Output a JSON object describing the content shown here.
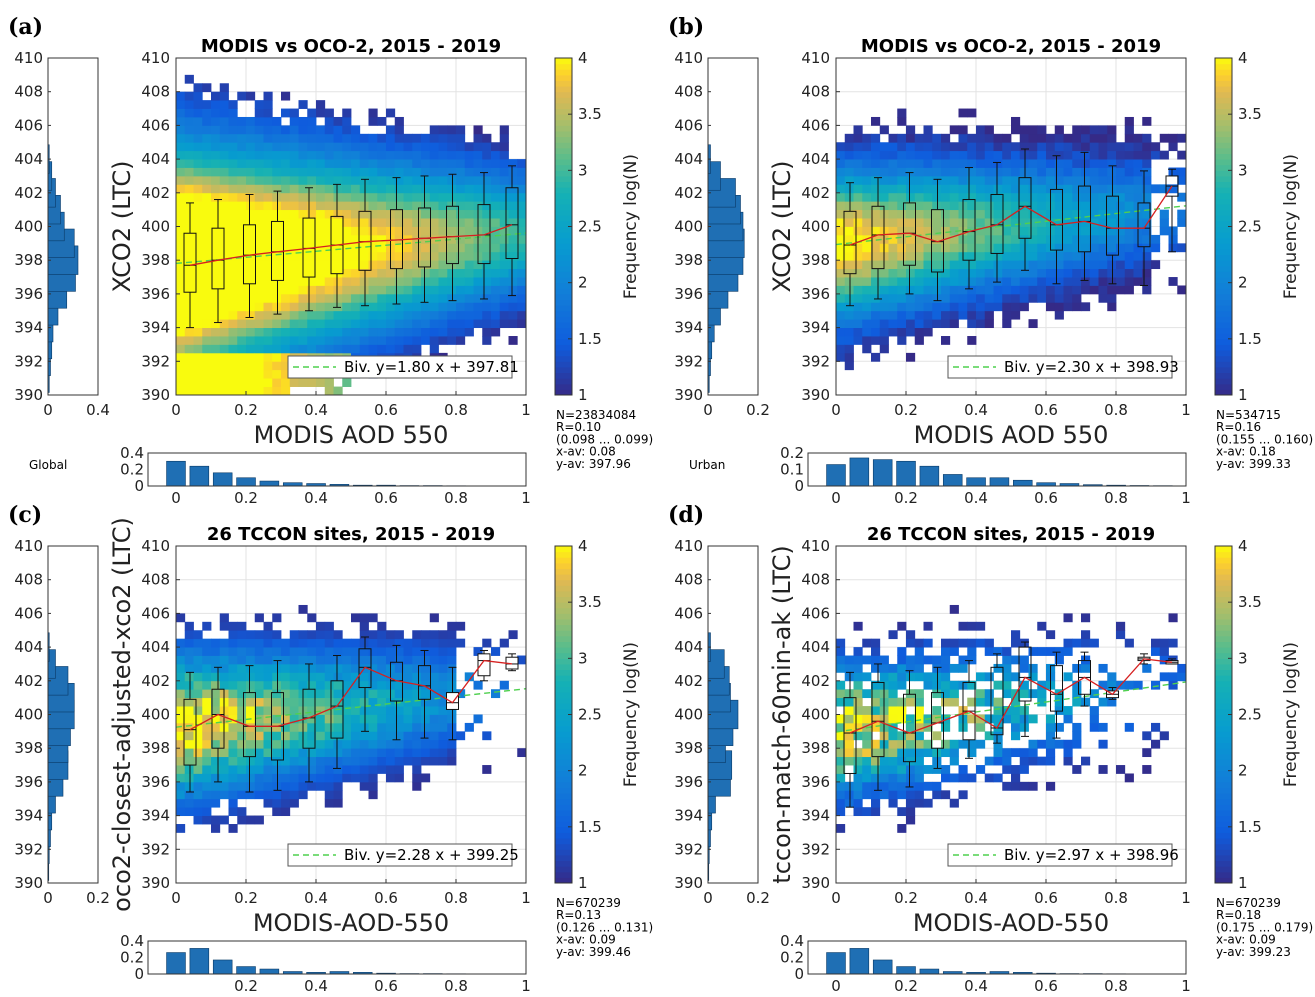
{
  "chart_data": [
    {
      "panel": "(a)",
      "type": "heatmap",
      "title": "MODIS vs OCO-2, 2015 - 2019",
      "xlabel": "MODIS AOD 550",
      "ylabel": "XCO2 (LTC)",
      "colorbar_label": "Frequency log(N)",
      "xlim": [
        0,
        1
      ],
      "ylim": [
        390,
        410
      ],
      "clim": [
        1,
        4
      ],
      "x_ticks": [
        "0",
        "0.2",
        "0.4",
        "0.6",
        "0.8",
        "1"
      ],
      "y_ticks": [
        "390",
        "392",
        "394",
        "396",
        "398",
        "400",
        "402",
        "404",
        "406",
        "408",
        "410"
      ],
      "cb_ticks": [
        "1",
        "1.5",
        "2",
        "2.5",
        "3",
        "3.5",
        "4"
      ],
      "region": "Global",
      "fit_legend": "Biv. y=1.80 x + 397.81",
      "fit": {
        "slope": 1.8,
        "intercept": 397.81
      },
      "stats": [
        "N=23834084",
        "R=0.10",
        "(0.098 ... 0.099)",
        "x-av: 0.08",
        "y-av: 397.96"
      ],
      "box_x": [
        0.04,
        0.12,
        0.21,
        0.29,
        0.38,
        0.46,
        0.54,
        0.63,
        0.71,
        0.79,
        0.88,
        0.96
      ],
      "box_median": [
        397.7,
        398.0,
        398.3,
        398.5,
        398.7,
        398.9,
        399.1,
        399.2,
        399.3,
        399.4,
        399.5,
        400.1
      ],
      "box_q1": [
        396.1,
        396.3,
        396.6,
        396.8,
        397.0,
        397.2,
        397.4,
        397.5,
        397.6,
        397.8,
        397.8,
        398.1
      ],
      "box_q3": [
        399.6,
        399.9,
        400.1,
        400.3,
        400.5,
        400.6,
        400.9,
        401.0,
        401.1,
        401.2,
        401.3,
        402.3
      ],
      "box_wlo": [
        394.0,
        394.3,
        394.6,
        394.8,
        395.0,
        395.2,
        395.3,
        395.4,
        395.5,
        395.6,
        395.7,
        395.9
      ],
      "box_whi": [
        401.4,
        401.6,
        401.9,
        402.1,
        402.3,
        402.5,
        402.8,
        402.9,
        403.0,
        403.1,
        403.2,
        403.6
      ],
      "top_hist": {
        "ticks": [
          "0",
          "0.2",
          "0.4",
          "0.6",
          "0.8",
          "1"
        ],
        "yticks": [
          "0",
          "0.2",
          "0.4"
        ],
        "ymax": 0.4,
        "values": [
          0.3,
          0.24,
          0.16,
          0.1,
          0.06,
          0.04,
          0.03,
          0.02,
          0.01,
          0.01,
          0.005,
          0.005,
          0.003,
          0.002,
          0.001
        ]
      },
      "side_hist": {
        "ticks": [
          "0",
          "0.4"
        ],
        "xmax": 0.4,
        "values": {
          "391": 0.01,
          "392": 0.02,
          "393": 0.03,
          "394": 0.04,
          "395": 0.08,
          "396": 0.15,
          "397": 0.22,
          "398": 0.24,
          "399": 0.21,
          "400": 0.13,
          "401": 0.1,
          "402": 0.06,
          "403": 0.03,
          "404": 0.01
        }
      }
    },
    {
      "panel": "(b)",
      "type": "heatmap",
      "title": "MODIS vs OCO-2, 2015 - 2019",
      "xlabel": "MODIS AOD 550",
      "ylabel": "XCO2 (LTC)",
      "colorbar_label": "Frequency log(N)",
      "xlim": [
        0,
        1
      ],
      "ylim": [
        390,
        410
      ],
      "clim": [
        1,
        4
      ],
      "x_ticks": [
        "0",
        "0.2",
        "0.4",
        "0.6",
        "0.8",
        "1"
      ],
      "y_ticks": [
        "390",
        "392",
        "394",
        "396",
        "398",
        "400",
        "402",
        "404",
        "406",
        "408",
        "410"
      ],
      "cb_ticks": [
        "1",
        "1.5",
        "2",
        "2.5",
        "3",
        "3.5",
        "4"
      ],
      "region": "Urban",
      "fit_legend": "Biv. y=2.30 x + 398.93",
      "fit": {
        "slope": 2.3,
        "intercept": 398.93
      },
      "stats": [
        "N=534715",
        "R=0.16",
        "(0.155 ... 0.160)",
        "x-av: 0.18",
        "y-av: 399.33"
      ],
      "box_x": [
        0.04,
        0.12,
        0.21,
        0.29,
        0.38,
        0.46,
        0.54,
        0.63,
        0.71,
        0.79,
        0.88,
        0.96
      ],
      "box_median": [
        398.9,
        399.5,
        399.6,
        399.1,
        399.7,
        400.1,
        401.2,
        400.1,
        400.3,
        399.9,
        399.9,
        402.4
      ],
      "box_q1": [
        397.2,
        397.5,
        397.7,
        397.3,
        398.0,
        398.4,
        399.3,
        398.6,
        398.5,
        398.3,
        398.8,
        401.8
      ],
      "box_q3": [
        400.9,
        401.2,
        401.4,
        401.0,
        401.6,
        401.9,
        402.9,
        402.2,
        402.4,
        401.8,
        401.4,
        403.0
      ],
      "box_wlo": [
        395.3,
        395.7,
        396.0,
        395.6,
        396.3,
        396.7,
        397.4,
        396.6,
        396.8,
        396.6,
        396.5,
        398.5
      ],
      "box_whi": [
        402.6,
        402.9,
        403.2,
        402.8,
        403.5,
        403.8,
        404.6,
        404.2,
        404.4,
        403.6,
        403.3,
        403.4
      ],
      "top_hist": {
        "ticks": [
          "0",
          "0.2",
          "0.4",
          "0.6",
          "0.8",
          "1"
        ],
        "yticks": [
          "0",
          "0.1",
          "0.2"
        ],
        "ymax": 0.2,
        "values": [
          0.13,
          0.17,
          0.16,
          0.15,
          0.12,
          0.07,
          0.05,
          0.05,
          0.035,
          0.02,
          0.015,
          0.008,
          0.005,
          0.003,
          0.002
        ]
      },
      "side_hist": {
        "ticks": [
          "0",
          "0.2"
        ],
        "xmax": 0.2,
        "values": {
          "391": 0.005,
          "392": 0.01,
          "393": 0.015,
          "394": 0.025,
          "395": 0.05,
          "396": 0.08,
          "397": 0.12,
          "398": 0.14,
          "399": 0.145,
          "400": 0.14,
          "401": 0.13,
          "402": 0.11,
          "403": 0.05,
          "404": 0.01
        }
      }
    },
    {
      "panel": "(c)",
      "type": "heatmap",
      "title": "26 TCCON sites, 2015 - 2019",
      "xlabel": "MODIS-AOD-550",
      "ylabel": "oco2-closest-adjusted-xco2 (LTC)",
      "colorbar_label": "Frequency log(N)",
      "xlim": [
        0,
        1
      ],
      "ylim": [
        390,
        410
      ],
      "clim": [
        1,
        4
      ],
      "x_ticks": [
        "0",
        "0.2",
        "0.4",
        "0.6",
        "0.8",
        "1"
      ],
      "y_ticks": [
        "390",
        "392",
        "394",
        "396",
        "398",
        "400",
        "402",
        "404",
        "406",
        "408",
        "410"
      ],
      "cb_ticks": [
        "1",
        "1.5",
        "2",
        "2.5",
        "3",
        "3.5",
        "4"
      ],
      "region": "",
      "fit_legend": "Biv. y=2.28 x + 399.25",
      "fit": {
        "slope": 2.28,
        "intercept": 399.25
      },
      "stats": [
        "N=670239",
        "R=0.13",
        "(0.126 ... 0.131)",
        "x-av: 0.09",
        "y-av: 399.46"
      ],
      "box_x": [
        0.04,
        0.12,
        0.21,
        0.29,
        0.38,
        0.46,
        0.54,
        0.63,
        0.71,
        0.79,
        0.88,
        0.96
      ],
      "box_median": [
        399.1,
        400.0,
        399.3,
        399.3,
        399.8,
        400.5,
        402.8,
        402.0,
        401.7,
        400.7,
        403.2,
        403.0
      ],
      "box_q1": [
        397.0,
        398.0,
        397.5,
        397.3,
        398.0,
        398.6,
        401.6,
        400.8,
        400.9,
        400.3,
        402.3,
        402.7
      ],
      "box_q3": [
        400.9,
        401.5,
        401.3,
        401.3,
        401.5,
        402.0,
        403.9,
        403.1,
        402.9,
        401.3,
        403.6,
        403.4
      ],
      "box_wlo": [
        395.4,
        396.0,
        395.4,
        395.5,
        396.0,
        396.8,
        399.0,
        398.5,
        398.6,
        398.5,
        402.0,
        402.6
      ],
      "box_whi": [
        402.5,
        402.8,
        402.9,
        403.2,
        403.0,
        403.5,
        404.6,
        404.1,
        403.8,
        402.8,
        403.8,
        403.6
      ],
      "top_hist": {
        "ticks": [
          "0.2",
          "0.4",
          "0.6",
          "0.8",
          "1"
        ],
        "yticks": [
          "0",
          "0.2",
          "0.4"
        ],
        "ymax": 0.4,
        "values": [
          0.26,
          0.31,
          0.17,
          0.09,
          0.06,
          0.03,
          0.02,
          0.03,
          0.02,
          0.01,
          0.005,
          0.005,
          0.003,
          0.002,
          0.001
        ]
      },
      "side_hist": {
        "ticks": [
          "0",
          "0.2"
        ],
        "xmax": 0.2,
        "values": {
          "391": 0.003,
          "392": 0.005,
          "393": 0.01,
          "394": 0.015,
          "395": 0.03,
          "396": 0.06,
          "397": 0.08,
          "398": 0.08,
          "399": 0.09,
          "400": 0.105,
          "401": 0.105,
          "402": 0.08,
          "403": 0.03,
          "404": 0.005
        }
      }
    },
    {
      "panel": "(d)",
      "type": "heatmap",
      "title": "26 TCCON sites, 2015 - 2019",
      "xlabel": "MODIS-AOD-550",
      "ylabel": "tccon-match-60min-ak (LTC)",
      "colorbar_label": "Frequency log(N)",
      "xlim": [
        0,
        1
      ],
      "ylim": [
        390,
        410
      ],
      "clim": [
        1,
        4
      ],
      "x_ticks": [
        "0",
        "0.2",
        "0.4",
        "0.6",
        "0.8",
        "1"
      ],
      "y_ticks": [
        "390",
        "392",
        "394",
        "396",
        "398",
        "400",
        "402",
        "404",
        "406",
        "408",
        "410"
      ],
      "cb_ticks": [
        "1",
        "1.5",
        "2",
        "2.5",
        "3",
        "3.5",
        "4"
      ],
      "region": "",
      "fit_legend": "Biv. y=2.97 x + 398.96",
      "fit": {
        "slope": 2.97,
        "intercept": 398.96
      },
      "stats": [
        "N=670239",
        "R=0.18",
        "(0.175 ... 0.179)",
        "x-av: 0.09",
        "y-av: 399.23"
      ],
      "box_x": [
        0.04,
        0.12,
        0.21,
        0.29,
        0.38,
        0.46,
        0.54,
        0.63,
        0.71,
        0.79,
        0.88,
        0.96
      ],
      "box_median": [
        398.9,
        399.6,
        398.9,
        399.5,
        400.2,
        399.2,
        402.2,
        401.2,
        402.2,
        401.2,
        403.3,
        403.1
      ],
      "box_q1": [
        396.5,
        397.5,
        397.2,
        398.0,
        398.5,
        398.8,
        400.8,
        400.2,
        401.2,
        401.0,
        403.2,
        403.0
      ],
      "box_q3": [
        401.0,
        401.9,
        401.2,
        401.3,
        401.9,
        402.8,
        404.0,
        402.9,
        403.2,
        401.4,
        403.4,
        403.2
      ],
      "box_wlo": [
        394.5,
        395.5,
        395.7,
        396.8,
        397.4,
        398.3,
        398.7,
        398.6,
        400.5,
        400.9,
        403.0,
        403.0
      ],
      "box_whi": [
        402.5,
        403.0,
        402.6,
        402.8,
        403.2,
        403.6,
        404.3,
        403.7,
        403.7,
        401.6,
        403.6,
        403.3
      ],
      "top_hist": {
        "ticks": [
          "0",
          "0.2",
          "0.4",
          "0.6",
          "0.8",
          "1"
        ],
        "yticks": [
          "0",
          "0.2",
          "0.4"
        ],
        "ymax": 0.4,
        "values": [
          0.26,
          0.31,
          0.17,
          0.09,
          0.06,
          0.03,
          0.02,
          0.03,
          0.02,
          0.01,
          0.005,
          0.005,
          0.003,
          0.002,
          0.001
        ]
      },
      "side_hist": {
        "ticks": [
          "0",
          "0.2"
        ],
        "xmax": 0.2,
        "values": {
          "391": 0.003,
          "392": 0.005,
          "393": 0.01,
          "394": 0.015,
          "395": 0.03,
          "396": 0.09,
          "397": 0.095,
          "398": 0.07,
          "399": 0.1,
          "400": 0.12,
          "401": 0.09,
          "402": 0.085,
          "403": 0.065,
          "404": 0.01
        }
      }
    }
  ]
}
